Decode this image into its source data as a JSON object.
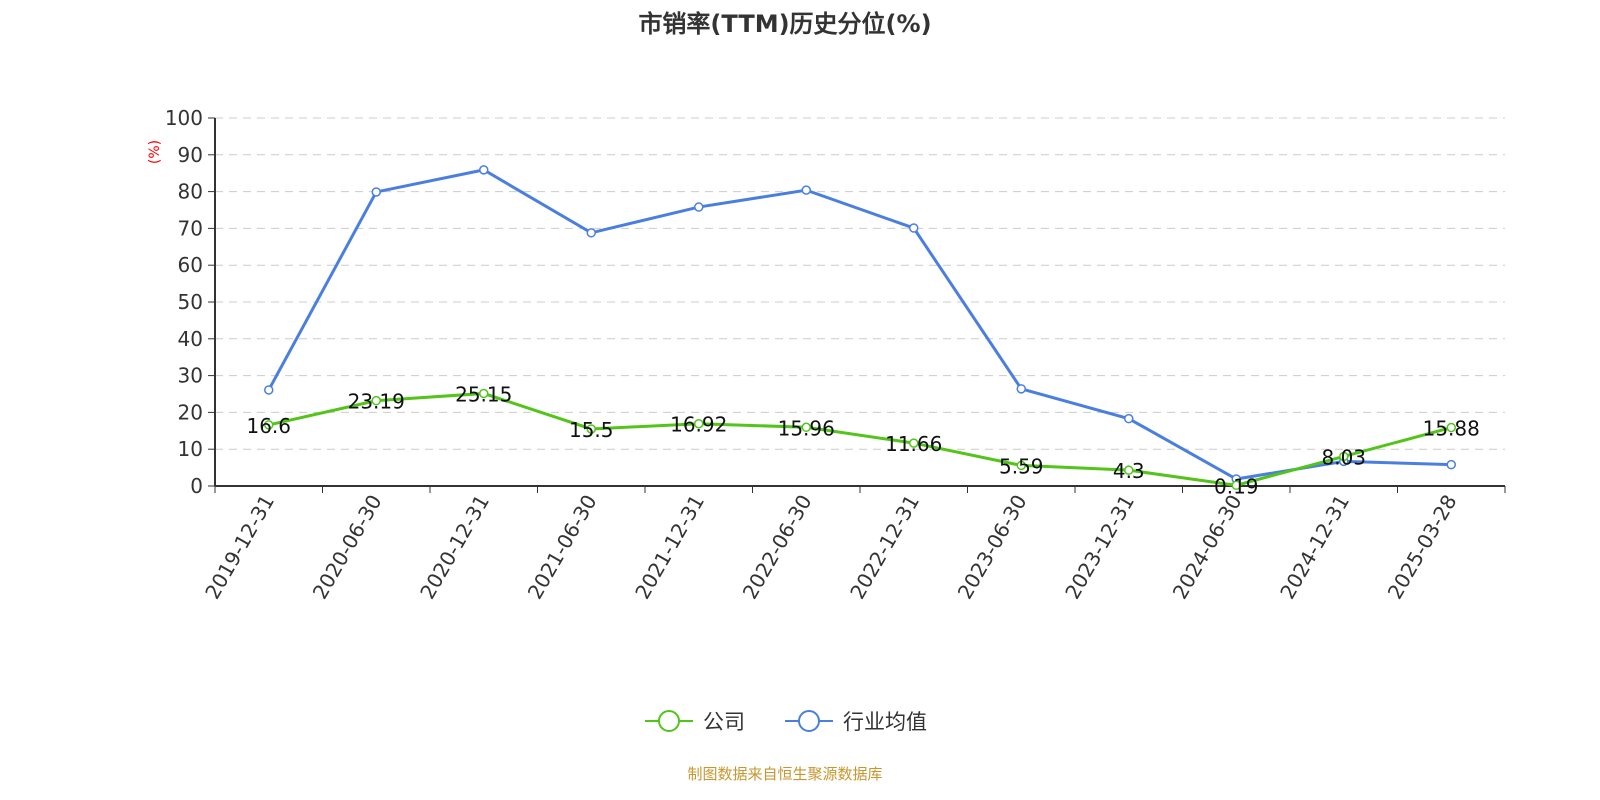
{
  "chart_data": {
    "type": "line",
    "title": "市销率(TTM)历史分位(%)",
    "ylabel": "(%)",
    "ylim": [
      0,
      100
    ],
    "yticks": [
      0,
      10,
      20,
      30,
      40,
      50,
      60,
      70,
      80,
      90,
      100
    ],
    "grid": true,
    "legend_position": "bottom",
    "categories": [
      "2019-12-31",
      "2020-06-30",
      "2020-12-31",
      "2021-06-30",
      "2021-12-31",
      "2022-06-30",
      "2022-12-31",
      "2023-06-30",
      "2023-12-31",
      "2024-06-30",
      "2024-12-31",
      "2025-03-28"
    ],
    "series": [
      {
        "name": "公司",
        "color": "#52c41a",
        "values": [
          16.6,
          23.19,
          25.15,
          15.5,
          16.92,
          15.96,
          11.66,
          5.59,
          4.3,
          0.19,
          8.03,
          15.88
        ],
        "labels_shown": true
      },
      {
        "name": "行业均值",
        "color": "#4a7fe0",
        "values": [
          26.1,
          79.9,
          85.9,
          68.8,
          75.8,
          80.4,
          70.1,
          26.4,
          18.3,
          1.9,
          6.7,
          5.8
        ],
        "labels_shown": false
      }
    ]
  },
  "footer": "制图数据来自恒生聚源数据库"
}
